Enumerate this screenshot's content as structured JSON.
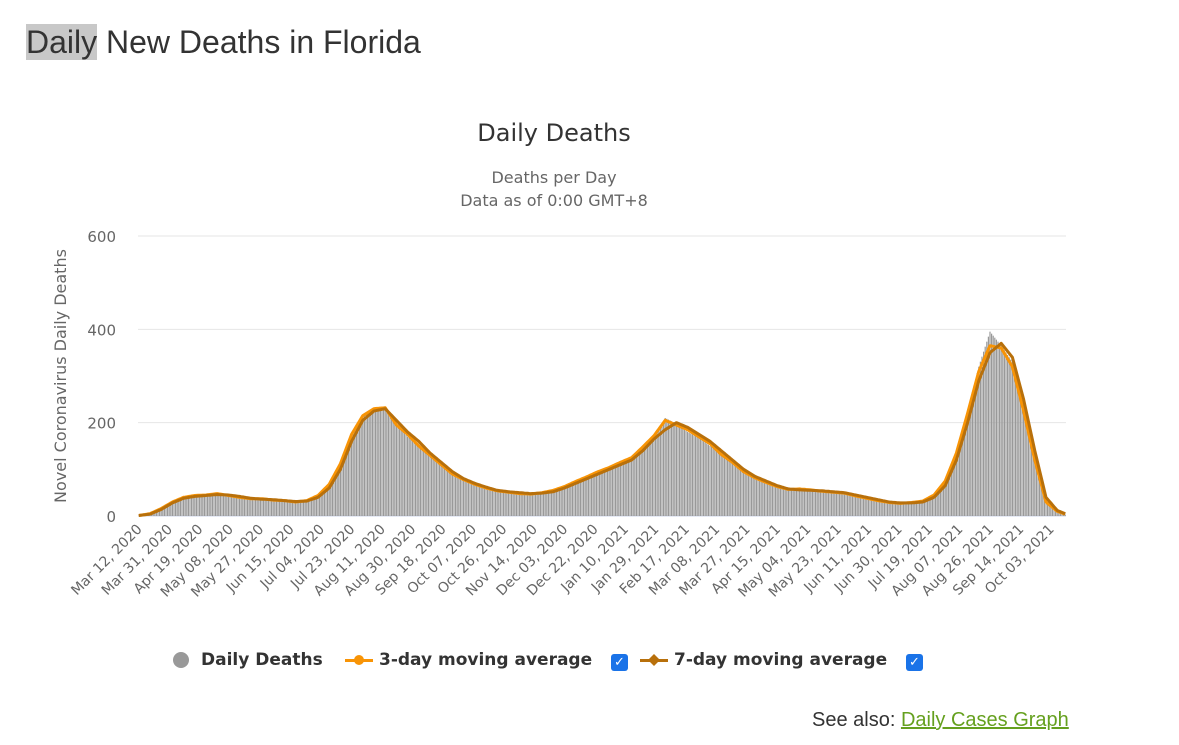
{
  "page": {
    "title_highlight": "Daily",
    "title_rest": " New Deaths in Florida",
    "see_also_label": "See also:",
    "see_also_link": "Daily Cases Graph"
  },
  "legend": {
    "daily": "Daily Deaths",
    "avg3": "3-day moving average",
    "avg7": "7-day moving average",
    "avg3_checked": true,
    "avg7_checked": true
  },
  "colors": {
    "bars": "#999999",
    "avg3": "#f89406",
    "avg7": "#b8700b",
    "checkbox": "#1a73e8",
    "link": "#65a01e"
  },
  "chart_data": {
    "type": "bar",
    "title": "Daily Deaths",
    "subtitle": [
      "Deaths per Day",
      "Data as of 0:00 GMT+8"
    ],
    "xlabel": "",
    "ylabel": "Novel Coronavirus Daily Deaths",
    "ylim": [
      0,
      600
    ],
    "yticks": [
      0,
      200,
      400,
      600
    ],
    "grid": true,
    "legend_position": "bottom",
    "start_date": "Mar 12, 2020",
    "days": 580,
    "xtick_labels": [
      "Mar 12, 2020",
      "Mar 31, 2020",
      "Apr 19, 2020",
      "May 08, 2020",
      "May 27, 2020",
      "Jun 15, 2020",
      "Jul 04, 2020",
      "Jul 23, 2020",
      "Aug 11, 2020",
      "Aug 30, 2020",
      "Sep 18, 2020",
      "Oct 07, 2020",
      "Oct 26, 2020",
      "Nov 14, 2020",
      "Dec 03, 2020",
      "Dec 22, 2020",
      "Jan 10, 2021",
      "Jan 29, 2021",
      "Feb 17, 2021",
      "Mar 08, 2021",
      "Mar 27, 2021",
      "Apr 15, 2021",
      "May 04, 2021",
      "May 23, 2021",
      "Jun 11, 2021",
      "Jun 30, 2021",
      "Jul 19, 2021",
      "Aug 07, 2021",
      "Aug 26, 2021",
      "Sep 14, 2021",
      "Oct 03, 2021"
    ],
    "xtick_interval_days": 19,
    "weekly_day_index": [
      0,
      7,
      14,
      21,
      28,
      35,
      42,
      49,
      56,
      63,
      70,
      77,
      84,
      91,
      98,
      105,
      112,
      119,
      126,
      133,
      140,
      147,
      154,
      161,
      168,
      175,
      182,
      189,
      196,
      203,
      210,
      217,
      224,
      231,
      238,
      245,
      252,
      259,
      266,
      273,
      280,
      287,
      294,
      301,
      308,
      315,
      322,
      329,
      336,
      343,
      350,
      357,
      364,
      371,
      378,
      385,
      392,
      399,
      406,
      413,
      420,
      427,
      434,
      441,
      448,
      455,
      462,
      469,
      476,
      483,
      490,
      497,
      504,
      511,
      518,
      525,
      532,
      539,
      546,
      553,
      560,
      567,
      574,
      579
    ],
    "series": [
      {
        "name": "7-day moving average",
        "values": [
          1,
          4,
          14,
          28,
          38,
          42,
          44,
          46,
          45,
          42,
          38,
          36,
          35,
          33,
          31,
          32,
          40,
          60,
          100,
          160,
          205,
          225,
          230,
          205,
          180,
          160,
          135,
          115,
          95,
          80,
          70,
          62,
          55,
          52,
          50,
          48,
          49,
          52,
          60,
          70,
          80,
          90,
          100,
          110,
          120,
          140,
          165,
          185,
          200,
          190,
          175,
          160,
          140,
          120,
          100,
          85,
          75,
          65,
          58,
          56,
          55,
          54,
          52,
          50,
          45,
          40,
          35,
          30,
          28,
          28,
          30,
          40,
          65,
          120,
          200,
          290,
          350,
          370,
          340,
          250,
          140,
          40,
          12,
          5
        ]
      },
      {
        "name": "3-day moving average",
        "values": [
          1,
          5,
          16,
          30,
          40,
          44,
          45,
          48,
          44,
          40,
          37,
          37,
          34,
          33,
          30,
          33,
          44,
          68,
          112,
          175,
          215,
          230,
          232,
          195,
          175,
          150,
          130,
          110,
          90,
          78,
          68,
          60,
          54,
          51,
          48,
          47,
          50,
          55,
          63,
          74,
          84,
          95,
          104,
          115,
          125,
          148,
          172,
          205,
          195,
          185,
          170,
          155,
          132,
          115,
          95,
          82,
          72,
          63,
          57,
          58,
          56,
          53,
          51,
          49,
          43,
          38,
          33,
          29,
          27,
          29,
          32,
          45,
          75,
          135,
          220,
          310,
          365,
          360,
          320,
          225,
          120,
          30,
          10,
          4
        ]
      },
      {
        "name": "Daily Deaths",
        "values": [
          0,
          5,
          15,
          30,
          40,
          45,
          44,
          50,
          46,
          40,
          36,
          38,
          33,
          34,
          30,
          31,
          42,
          65,
          110,
          170,
          215,
          228,
          235,
          200,
          170,
          155,
          128,
          112,
          92,
          76,
          70,
          58,
          56,
          50,
          47,
          48,
          50,
          54,
          62,
          72,
          82,
          93,
          105,
          112,
          128,
          145,
          170,
          210,
          198,
          180,
          168,
          150,
          135,
          118,
          95,
          84,
          70,
          62,
          55,
          60,
          57,
          52,
          50,
          48,
          42,
          36,
          34,
          28,
          26,
          30,
          33,
          45,
          72,
          140,
          225,
          320,
          395,
          365,
          330,
          230,
          130,
          30,
          10,
          3
        ]
      }
    ]
  }
}
